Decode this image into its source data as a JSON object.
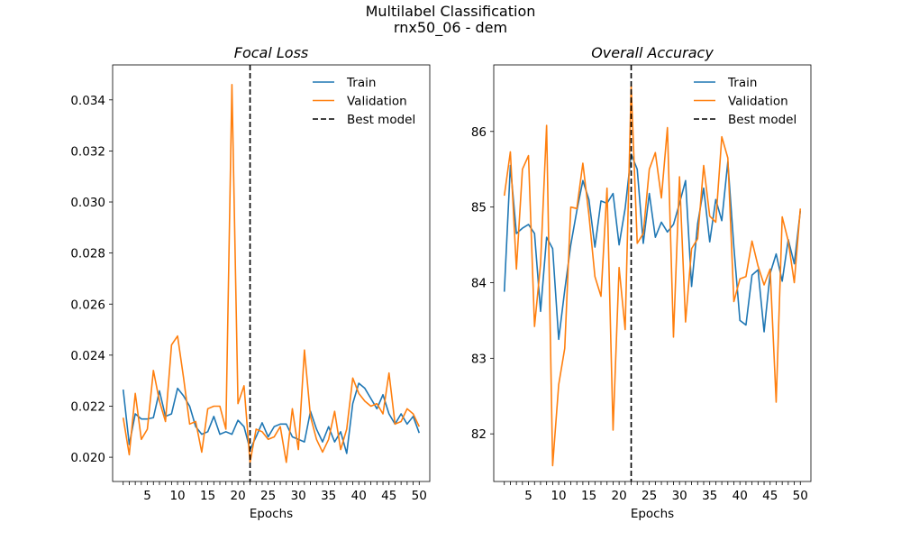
{
  "figure": {
    "title_line1": "Multilabel Classification",
    "title_line2": "rnx50_06 - dem"
  },
  "legend": {
    "train": "Train",
    "validation": "Validation",
    "best": "Best model"
  },
  "colors": {
    "train": "#1f77b4",
    "validation": "#ff7f0e",
    "best": "#000000"
  },
  "chart_data": [
    {
      "type": "line",
      "title": "Focal Loss",
      "xlabel": "Epochs",
      "ylabel": "",
      "xlim": [
        -0.75,
        51.75
      ],
      "ylim": [
        0.01905,
        0.03537
      ],
      "xticks": [
        5,
        10,
        15,
        20,
        25,
        30,
        35,
        40,
        45,
        50
      ],
      "yticks": [
        0.02,
        0.022,
        0.024,
        0.026,
        0.028,
        0.03,
        0.032,
        0.034
      ],
      "ytick_labels": [
        "0.020",
        "0.022",
        "0.024",
        "0.026",
        "0.028",
        "0.030",
        "0.032",
        "0.034"
      ],
      "best_epoch": 22,
      "legend_position": "top-right",
      "x": [
        1,
        2,
        3,
        4,
        5,
        6,
        7,
        8,
        9,
        10,
        11,
        12,
        13,
        14,
        15,
        16,
        17,
        18,
        19,
        20,
        21,
        22,
        23,
        24,
        25,
        26,
        27,
        28,
        29,
        30,
        31,
        32,
        33,
        34,
        35,
        36,
        37,
        38,
        39,
        40,
        41,
        42,
        43,
        44,
        45,
        46,
        47,
        48,
        49,
        50
      ],
      "series": [
        {
          "name": "Train",
          "values": [
            0.02265,
            0.0205,
            0.0217,
            0.0215,
            0.0215,
            0.02155,
            0.0226,
            0.0216,
            0.0217,
            0.0227,
            0.0224,
            0.022,
            0.0212,
            0.0209,
            0.021,
            0.0216,
            0.0209,
            0.021,
            0.0209,
            0.02145,
            0.0212,
            0.0203,
            0.0208,
            0.02135,
            0.0208,
            0.0212,
            0.0213,
            0.0213,
            0.0208,
            0.0207,
            0.0206,
            0.0218,
            0.0211,
            0.0206,
            0.0212,
            0.0206,
            0.021,
            0.02015,
            0.0221,
            0.0229,
            0.0227,
            0.0223,
            0.0219,
            0.02245,
            0.0217,
            0.0213,
            0.0217,
            0.0213,
            0.0216,
            0.02095
          ]
        },
        {
          "name": "Validation",
          "values": [
            0.02155,
            0.0201,
            0.0225,
            0.0207,
            0.0211,
            0.0234,
            0.0222,
            0.0214,
            0.0244,
            0.02475,
            0.0231,
            0.0213,
            0.0214,
            0.0202,
            0.0219,
            0.022,
            0.022,
            0.0211,
            0.0346,
            0.0221,
            0.0228,
            0.0198,
            0.0211,
            0.021,
            0.0207,
            0.0208,
            0.0212,
            0.0198,
            0.0219,
            0.0203,
            0.0242,
            0.0216,
            0.0207,
            0.0202,
            0.0207,
            0.0218,
            0.0203,
            0.0211,
            0.0231,
            0.0225,
            0.0222,
            0.022,
            0.0221,
            0.0217,
            0.0233,
            0.0213,
            0.0214,
            0.0219,
            0.0217,
            0.0212
          ]
        }
      ]
    },
    {
      "type": "line",
      "title": "Overall Accuracy",
      "xlabel": "Epochs",
      "ylabel": "",
      "xlim": [
        -0.75,
        51.75
      ],
      "ylim": [
        81.37,
        86.88
      ],
      "xticks": [
        5,
        10,
        15,
        20,
        25,
        30,
        35,
        40,
        45,
        50
      ],
      "yticks": [
        82,
        83,
        84,
        85,
        86
      ],
      "ytick_labels": [
        "82",
        "83",
        "84",
        "85",
        "86"
      ],
      "best_epoch": 22,
      "legend_position": "top-right",
      "x": [
        1,
        2,
        3,
        4,
        5,
        6,
        7,
        8,
        9,
        10,
        11,
        12,
        13,
        14,
        15,
        16,
        17,
        18,
        19,
        20,
        21,
        22,
        23,
        24,
        25,
        26,
        27,
        28,
        29,
        30,
        31,
        32,
        33,
        34,
        35,
        36,
        37,
        38,
        39,
        40,
        41,
        42,
        43,
        44,
        45,
        46,
        47,
        48,
        49,
        50
      ],
      "series": [
        {
          "name": "Train",
          "values": [
            83.88,
            85.55,
            84.65,
            84.72,
            84.77,
            84.65,
            83.62,
            84.6,
            84.45,
            83.25,
            83.9,
            84.5,
            84.95,
            85.35,
            85.1,
            84.47,
            85.08,
            85.05,
            85.18,
            84.5,
            84.98,
            85.7,
            85.5,
            84.52,
            85.18,
            84.6,
            84.8,
            84.67,
            84.77,
            85.05,
            85.35,
            83.95,
            84.78,
            85.25,
            84.54,
            85.1,
            84.82,
            85.6,
            84.47,
            83.5,
            83.44,
            84.1,
            84.17,
            83.35,
            84.12,
            84.38,
            84.02,
            84.57,
            84.25,
            84.95
          ]
        },
        {
          "name": "Validation",
          "values": [
            85.15,
            85.73,
            84.18,
            85.5,
            85.68,
            83.42,
            84.25,
            86.08,
            81.58,
            82.65,
            83.13,
            85.0,
            84.98,
            85.58,
            84.9,
            84.08,
            83.82,
            85.25,
            82.05,
            84.2,
            83.38,
            86.6,
            84.52,
            84.65,
            85.5,
            85.72,
            85.12,
            86.05,
            83.28,
            85.4,
            83.48,
            84.45,
            84.58,
            85.55,
            84.88,
            84.8,
            85.93,
            85.65,
            83.75,
            84.05,
            84.08,
            84.55,
            84.22,
            83.97,
            84.18,
            82.42,
            84.87,
            84.55,
            84.0,
            84.98
          ]
        }
      ]
    }
  ]
}
